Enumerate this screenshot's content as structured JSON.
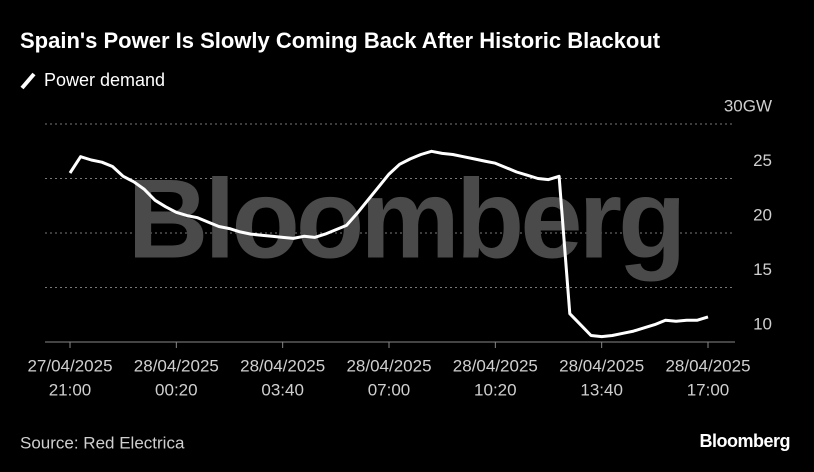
{
  "chart_data": {
    "type": "line",
    "title": "Spain's Power Is Slowly Coming Back After Historic Blackout",
    "watermark": "Bloomberg",
    "source": "Source: Red Electrica",
    "logo": "Bloomberg",
    "grid": true,
    "x": [
      "2025-04-27 21:00",
      "2025-04-27 21:20",
      "2025-04-27 21:40",
      "2025-04-27 22:00",
      "2025-04-27 22:20",
      "2025-04-27 22:40",
      "2025-04-27 23:00",
      "2025-04-27 23:20",
      "2025-04-27 23:40",
      "2025-04-28 00:00",
      "2025-04-28 00:20",
      "2025-04-28 00:40",
      "2025-04-28 01:00",
      "2025-04-28 01:20",
      "2025-04-28 01:40",
      "2025-04-28 02:00",
      "2025-04-28 02:20",
      "2025-04-28 02:40",
      "2025-04-28 03:00",
      "2025-04-28 03:20",
      "2025-04-28 03:40",
      "2025-04-28 04:00",
      "2025-04-28 04:20",
      "2025-04-28 04:40",
      "2025-04-28 05:00",
      "2025-04-28 05:20",
      "2025-04-28 05:40",
      "2025-04-28 06:00",
      "2025-04-28 06:20",
      "2025-04-28 06:40",
      "2025-04-28 07:00",
      "2025-04-28 07:20",
      "2025-04-28 07:40",
      "2025-04-28 08:00",
      "2025-04-28 08:20",
      "2025-04-28 08:40",
      "2025-04-28 09:00",
      "2025-04-28 09:20",
      "2025-04-28 09:40",
      "2025-04-28 10:00",
      "2025-04-28 10:20",
      "2025-04-28 10:40",
      "2025-04-28 11:00",
      "2025-04-28 11:20",
      "2025-04-28 11:40",
      "2025-04-28 12:00",
      "2025-04-28 12:20",
      "2025-04-28 12:40",
      "2025-04-28 13:00",
      "2025-04-28 13:20",
      "2025-04-28 13:40",
      "2025-04-28 14:00",
      "2025-04-28 14:20",
      "2025-04-28 14:40",
      "2025-04-28 15:00",
      "2025-04-28 15:20",
      "2025-04-28 15:40",
      "2025-04-28 16:00",
      "2025-04-28 16:20",
      "2025-04-28 16:40",
      "2025-04-28 17:00"
    ],
    "series": [
      {
        "name": "Power demand",
        "color": "#ffffff",
        "values": [
          25.5,
          27.0,
          26.7,
          26.5,
          26.1,
          25.2,
          24.7,
          24.0,
          23.0,
          22.4,
          21.9,
          21.6,
          21.4,
          21.0,
          20.6,
          20.4,
          20.1,
          19.9,
          19.8,
          19.7,
          19.6,
          19.5,
          19.7,
          19.6,
          19.9,
          20.3,
          20.7,
          21.8,
          23.0,
          24.2,
          25.4,
          26.3,
          26.8,
          27.2,
          27.5,
          27.3,
          27.2,
          27.0,
          26.8,
          26.6,
          26.4,
          26.0,
          25.6,
          25.3,
          25.0,
          24.9,
          25.2,
          12.6,
          11.6,
          10.6,
          10.5,
          10.6,
          10.8,
          11.0,
          11.3,
          11.6,
          12.0,
          11.9,
          12.0,
          12.0,
          12.3
        ]
      }
    ],
    "xlim": [
      "2025-04-27 21:00",
      "2025-04-28 17:00"
    ],
    "xticks": [
      {
        "value": "2025-04-27 21:00",
        "label": [
          "27/04/2025",
          "21:00"
        ]
      },
      {
        "value": "2025-04-28 00:20",
        "label": [
          "28/04/2025",
          "00:20"
        ]
      },
      {
        "value": "2025-04-28 03:40",
        "label": [
          "28/04/2025",
          "03:40"
        ]
      },
      {
        "value": "2025-04-28 07:00",
        "label": [
          "28/04/2025",
          "07:00"
        ]
      },
      {
        "value": "2025-04-28 10:20",
        "label": [
          "28/04/2025",
          "10:20"
        ]
      },
      {
        "value": "2025-04-28 13:40",
        "label": [
          "28/04/2025",
          "13:40"
        ]
      },
      {
        "value": "2025-04-28 17:00",
        "label": [
          "28/04/2025",
          "17:00"
        ]
      }
    ],
    "ylim": [
      10,
      30
    ],
    "yticks": [
      10,
      15,
      20,
      25,
      {
        "value": 30,
        "label": "30GW"
      }
    ]
  }
}
